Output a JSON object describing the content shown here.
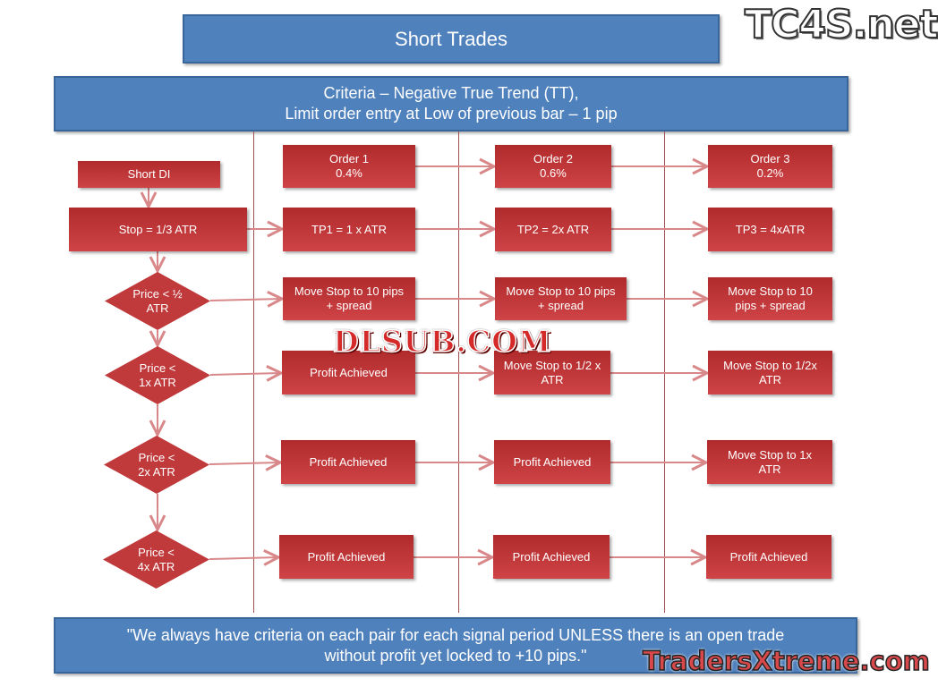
{
  "title": "Short Trades",
  "criteria": {
    "line1": "Criteria – Negative True Trend (TT),",
    "line2": "Limit order entry at Low of previous bar – 1 pip"
  },
  "left": {
    "short_di": "Short DI",
    "stop": "Stop = 1/3 ATR",
    "diamonds": [
      "Price < ½\nATR",
      "Price <\n1x ATR",
      "Price <\n2x ATR",
      "Price <\n4x ATR"
    ]
  },
  "orders": [
    {
      "header": "Order 1\n0.4%",
      "tp": "TP1 = 1 x ATR",
      "steps": [
        "Move Stop to 10 pips\n+ spread",
        "Profit Achieved",
        "Profit Achieved",
        "Profit Achieved"
      ]
    },
    {
      "header": "Order 2\n0.6%",
      "tp": "TP2 = 2x ATR",
      "steps": [
        "Move Stop to 10 pips\n+ spread",
        "Move Stop to 1/2 x\nATR",
        "Profit Achieved",
        "Profit Achieved"
      ]
    },
    {
      "header": "Order 3\n0.2%",
      "tp": "TP3 = 4xATR",
      "steps": [
        "Move Stop to 10\npips + spread",
        "Move Stop to 1/2x\nATR",
        "Move Stop to 1x\nATR",
        "Profit Achieved"
      ]
    }
  ],
  "footer": {
    "line1": "\"We always have criteria on each pair for each signal period UNLESS there is an open trade",
    "line2": "without profit yet locked to +10 pips.\""
  },
  "watermarks": {
    "tc4s": "TC4S.net",
    "dlsub": "DLSUB.COM",
    "traders": "TradersXtreme.com"
  },
  "colors": {
    "blue": "#4f81bd",
    "red": "#c0393b"
  }
}
